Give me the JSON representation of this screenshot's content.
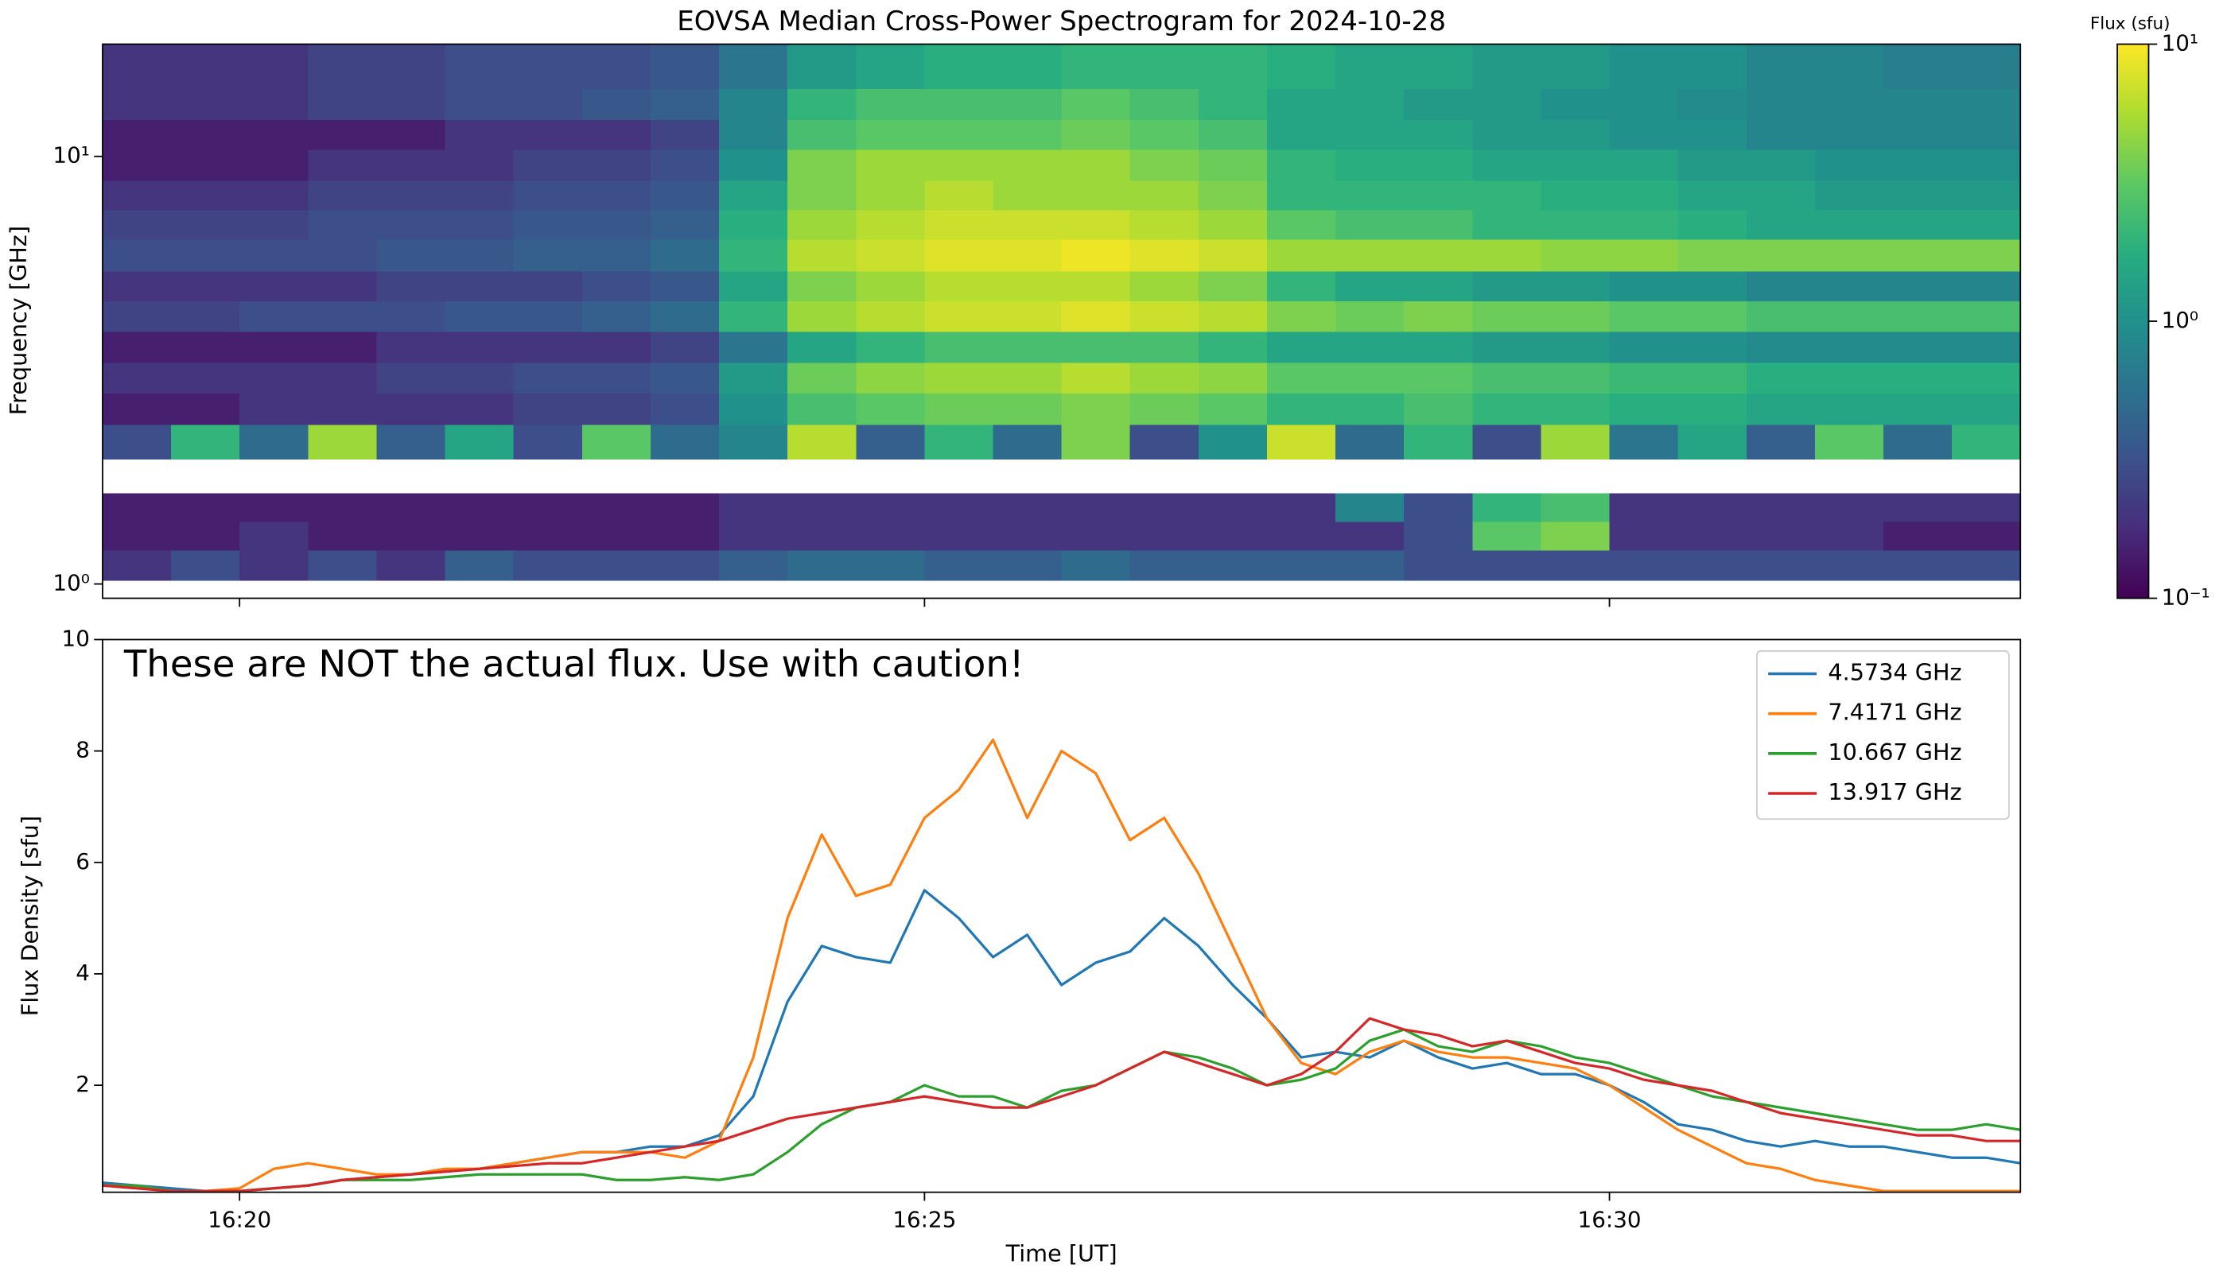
{
  "chart_data": [
    {
      "type": "heatmap",
      "title": "EOVSA Median Cross-Power Spectrogram for 2024-10-28",
      "ylabel": "Frequency [GHz]",
      "x_edges": [
        979,
        979.5,
        980,
        980.5,
        981,
        981.5,
        982,
        982.5,
        983,
        983.5,
        984,
        984.5,
        985,
        985.5,
        986,
        986.5,
        987,
        987.5,
        988,
        988.5,
        989,
        989.5,
        990,
        990.5,
        991,
        991.5,
        992,
        992.5,
        993
      ],
      "y_edges": [
        1.02,
        1.2,
        1.4,
        1.63,
        1.96,
        2.36,
        2.8,
        3.3,
        3.9,
        4.6,
        5.4,
        6.4,
        7.5,
        8.8,
        10.4,
        12.2,
        14.4,
        18.3
      ],
      "z": [
        [
          0.2,
          0.3,
          0.2,
          0.3,
          0.2,
          0.4,
          0.3,
          0.3,
          0.3,
          0.4,
          0.5,
          0.5,
          0.4,
          0.4,
          0.5,
          0.4,
          0.4,
          0.4,
          0.4,
          0.3,
          0.3,
          0.3,
          0.3,
          0.3,
          0.3,
          0.3,
          0.3,
          0.3
        ],
        [
          0.15,
          0.15,
          0.2,
          0.15,
          0.15,
          0.15,
          0.15,
          0.15,
          0.15,
          0.2,
          0.2,
          0.2,
          0.2,
          0.2,
          0.2,
          0.2,
          0.2,
          0.2,
          0.2,
          0.3,
          3,
          4,
          0.2,
          0.2,
          0.2,
          0.2,
          0.15,
          0.15
        ],
        [
          0.15,
          0.15,
          0.15,
          0.15,
          0.15,
          0.15,
          0.15,
          0.15,
          0.15,
          0.2,
          0.2,
          0.2,
          0.2,
          0.2,
          0.2,
          0.2,
          0.2,
          0.2,
          0.8,
          0.3,
          2,
          2.5,
          0.2,
          0.2,
          0.2,
          0.2,
          0.2,
          0.2
        ],
        null,
        [
          0.3,
          2,
          0.5,
          5,
          0.4,
          1.5,
          0.3,
          3,
          0.5,
          0.8,
          6,
          0.4,
          2,
          0.5,
          4,
          0.3,
          1,
          7,
          0.5,
          2,
          0.3,
          5,
          0.6,
          1.5,
          0.4,
          3,
          0.5,
          2
        ],
        [
          0.15,
          0.15,
          0.2,
          0.2,
          0.2,
          0.2,
          0.25,
          0.25,
          0.3,
          1,
          2.5,
          3,
          3.5,
          3.5,
          4,
          3.5,
          3,
          2,
          2,
          2.5,
          2,
          2,
          1.8,
          1.8,
          1.5,
          1.5,
          1.5,
          1.5
        ],
        [
          0.2,
          0.2,
          0.2,
          0.2,
          0.25,
          0.25,
          0.3,
          0.3,
          0.35,
          1.2,
          3.5,
          4.5,
          5,
          5,
          6,
          5,
          4.5,
          3,
          3,
          3,
          2.5,
          2.5,
          2.2,
          2.2,
          1.8,
          1.8,
          1.8,
          1.8
        ],
        [
          0.15,
          0.15,
          0.15,
          0.15,
          0.2,
          0.2,
          0.2,
          0.2,
          0.25,
          0.6,
          1.5,
          2,
          2.5,
          2.5,
          2.5,
          2.5,
          2,
          1.5,
          1.5,
          1.5,
          1.2,
          1.2,
          1,
          1,
          0.9,
          0.9,
          0.9,
          0.9
        ],
        [
          0.25,
          0.25,
          0.3,
          0.3,
          0.3,
          0.35,
          0.35,
          0.4,
          0.5,
          2,
          5,
          6,
          7,
          7,
          8,
          7,
          6,
          4,
          3.5,
          4,
          3.5,
          3.5,
          3,
          3,
          2.5,
          2.5,
          2.5,
          2.5
        ],
        [
          0.2,
          0.2,
          0.2,
          0.2,
          0.25,
          0.25,
          0.25,
          0.3,
          0.35,
          1.5,
          4,
          5,
          6,
          6,
          6,
          5,
          4,
          2,
          1.5,
          1.5,
          1.2,
          1.2,
          1,
          1,
          0.8,
          0.8,
          0.8,
          0.8
        ],
        [
          0.3,
          0.3,
          0.3,
          0.3,
          0.35,
          0.35,
          0.4,
          0.4,
          0.5,
          2,
          6,
          7,
          8,
          8,
          9,
          8,
          7,
          5,
          5,
          5,
          5,
          4.5,
          4.5,
          4,
          4,
          4,
          4,
          4
        ],
        [
          0.25,
          0.25,
          0.25,
          0.3,
          0.3,
          0.3,
          0.35,
          0.35,
          0.4,
          1.8,
          5,
          6,
          7,
          7,
          7,
          6,
          5,
          3,
          2.5,
          2.5,
          2,
          2,
          2,
          1.8,
          1.5,
          1.5,
          1.5,
          1.5
        ],
        [
          0.2,
          0.2,
          0.2,
          0.25,
          0.25,
          0.25,
          0.3,
          0.3,
          0.35,
          1.5,
          4,
          5,
          6,
          5,
          5,
          5,
          4,
          2,
          2,
          2,
          2,
          1.8,
          1.8,
          1.5,
          1.5,
          1.2,
          1.2,
          1.2
        ],
        [
          0.15,
          0.15,
          0.15,
          0.2,
          0.2,
          0.2,
          0.25,
          0.25,
          0.3,
          1,
          4,
          5,
          5,
          5,
          5,
          4,
          3.5,
          2,
          1.8,
          1.8,
          1.5,
          1.5,
          1.5,
          1.2,
          1.2,
          1,
          1,
          1
        ],
        [
          0.15,
          0.15,
          0.15,
          0.15,
          0.15,
          0.2,
          0.2,
          0.2,
          0.25,
          0.8,
          2.5,
          3,
          3,
          3,
          3.5,
          3,
          2.5,
          1.5,
          1.5,
          1.5,
          1.2,
          1.2,
          1,
          1,
          0.8,
          0.8,
          0.8,
          0.8
        ],
        [
          0.2,
          0.2,
          0.2,
          0.25,
          0.25,
          0.3,
          0.3,
          0.35,
          0.4,
          0.8,
          2,
          2.5,
          2.5,
          2.5,
          3,
          2.5,
          2,
          1.5,
          1.5,
          1.2,
          1.2,
          1,
          1,
          0.9,
          0.8,
          0.8,
          0.8,
          0.8
        ],
        [
          0.2,
          0.2,
          0.2,
          0.25,
          0.25,
          0.3,
          0.3,
          0.3,
          0.35,
          0.6,
          1.2,
          1.5,
          1.8,
          1.8,
          2,
          2,
          2,
          1.8,
          1.5,
          1.5,
          1.2,
          1.2,
          1,
          1,
          0.8,
          0.8,
          0.7,
          0.7
        ]
      ],
      "xlim": [
        979,
        993
      ],
      "xticks": [
        980,
        985,
        990
      ],
      "ylim": [
        0.926,
        18.3
      ],
      "yscale": "log",
      "yticks": [
        {
          "value": 1,
          "label": "10⁰"
        },
        {
          "value": 10,
          "label": "10¹"
        }
      ],
      "colorbar": {
        "label": "Flux (sfu)",
        "colormap": "viridis",
        "scale": "log",
        "clim": [
          0.1,
          10
        ],
        "ticks": [
          {
            "value": 0.1,
            "label": "10⁻¹"
          },
          {
            "value": 1,
            "label": "10⁰"
          },
          {
            "value": 10,
            "label": "10¹"
          }
        ]
      }
    },
    {
      "type": "line",
      "annotation": "These are NOT the actual flux. Use with caution!",
      "xlabel": "Time [UT]",
      "ylabel": "Flux Density [sfu]",
      "x": [
        979,
        979.25,
        979.5,
        979.75,
        980,
        980.25,
        980.5,
        980.75,
        981,
        981.25,
        981.5,
        981.75,
        982,
        982.25,
        982.5,
        982.75,
        983,
        983.25,
        983.5,
        983.75,
        984,
        984.25,
        984.5,
        984.75,
        985,
        985.25,
        985.5,
        985.75,
        986,
        986.25,
        986.5,
        986.75,
        987,
        987.25,
        987.5,
        987.75,
        988,
        988.25,
        988.5,
        988.75,
        989,
        989.25,
        989.5,
        989.75,
        990,
        990.25,
        990.5,
        990.75,
        991,
        991.25,
        991.5,
        991.75,
        992,
        992.25,
        992.5,
        992.75,
        993
      ],
      "series": [
        {
          "name": "4.5734 GHz",
          "color": "#1f77b4",
          "values": [
            0.25,
            0.2,
            0.15,
            0.1,
            0.1,
            0.15,
            0.2,
            0.3,
            0.35,
            0.4,
            0.45,
            0.5,
            0.6,
            0.7,
            0.8,
            0.8,
            0.9,
            0.9,
            1.1,
            1.8,
            3.5,
            4.5,
            4.3,
            4.2,
            5.5,
            5,
            4.3,
            4.7,
            3.8,
            4.2,
            4.4,
            5.0,
            4.5,
            3.8,
            3.2,
            2.5,
            2.6,
            2.5,
            2.8,
            2.5,
            2.3,
            2.4,
            2.2,
            2.2,
            2.0,
            1.7,
            1.3,
            1.2,
            1.0,
            0.9,
            1.0,
            0.9,
            0.9,
            0.8,
            0.7,
            0.7,
            0.6
          ]
        },
        {
          "name": "7.4171 GHz",
          "color": "#ff7f0e",
          "values": [
            0.2,
            0.2,
            0.1,
            0.1,
            0.15,
            0.5,
            0.6,
            0.5,
            0.4,
            0.4,
            0.5,
            0.5,
            0.6,
            0.7,
            0.8,
            0.8,
            0.8,
            0.7,
            1.0,
            2.5,
            5.0,
            6.5,
            5.4,
            5.6,
            6.8,
            7.3,
            8.2,
            6.8,
            8.0,
            7.6,
            6.4,
            6.8,
            5.8,
            4.5,
            3.2,
            2.4,
            2.2,
            2.6,
            2.8,
            2.6,
            2.5,
            2.5,
            2.4,
            2.3,
            2.0,
            1.6,
            1.2,
            0.9,
            0.6,
            0.5,
            0.3,
            0.2,
            0.1,
            0.1,
            0.1,
            0.1,
            0.1
          ]
        },
        {
          "name": "10.667 GHz",
          "color": "#2ca02c",
          "values": [
            0.2,
            0.2,
            0.1,
            0.1,
            0.1,
            0.15,
            0.2,
            0.3,
            0.3,
            0.3,
            0.35,
            0.4,
            0.4,
            0.4,
            0.4,
            0.3,
            0.3,
            0.35,
            0.3,
            0.4,
            0.8,
            1.3,
            1.6,
            1.7,
            2.0,
            1.8,
            1.8,
            1.6,
            1.9,
            2.0,
            2.3,
            2.6,
            2.5,
            2.3,
            2.0,
            2.1,
            2.3,
            2.8,
            3.0,
            2.7,
            2.6,
            2.8,
            2.7,
            2.5,
            2.4,
            2.2,
            2.0,
            1.8,
            1.7,
            1.6,
            1.5,
            1.4,
            1.3,
            1.2,
            1.2,
            1.3,
            1.2
          ]
        },
        {
          "name": "13.917 GHz",
          "color": "#d62728",
          "values": [
            0.2,
            0.15,
            0.1,
            0.1,
            0.1,
            0.15,
            0.2,
            0.3,
            0.35,
            0.4,
            0.45,
            0.5,
            0.55,
            0.6,
            0.6,
            0.7,
            0.8,
            0.9,
            1.0,
            1.2,
            1.4,
            1.5,
            1.6,
            1.7,
            1.8,
            1.7,
            1.6,
            1.6,
            1.8,
            2.0,
            2.3,
            2.6,
            2.4,
            2.2,
            2.0,
            2.2,
            2.6,
            3.2,
            3.0,
            2.9,
            2.7,
            2.8,
            2.6,
            2.4,
            2.3,
            2.1,
            2.0,
            1.9,
            1.7,
            1.5,
            1.4,
            1.3,
            1.2,
            1.1,
            1.1,
            1.0,
            1.0
          ]
        }
      ],
      "xlim": [
        979,
        993
      ],
      "xticks": [
        {
          "value": 980,
          "label": "16:20"
        },
        {
          "value": 985,
          "label": "16:25"
        },
        {
          "value": 990,
          "label": "16:30"
        }
      ],
      "ylim": [
        0.08,
        10
      ],
      "yticks": [
        2,
        4,
        6,
        8,
        10
      ],
      "legend": "upper right"
    }
  ]
}
